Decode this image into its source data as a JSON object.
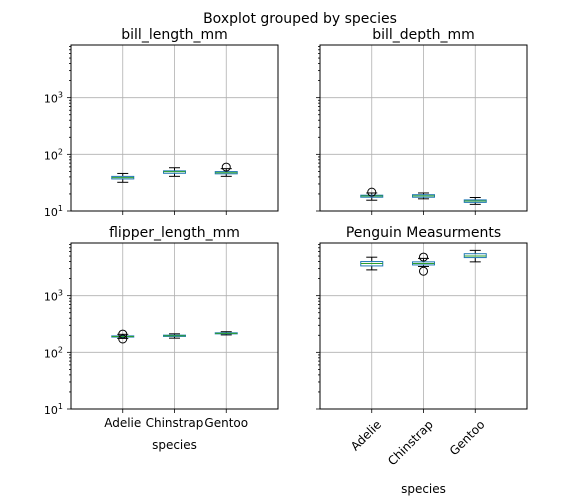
{
  "figure_title": "Boxplot grouped by species",
  "chart_data": [
    {
      "type": "boxplot",
      "title": "bill_length_mm",
      "categories": [
        "Adelie",
        "Chinstrap",
        "Gentoo"
      ],
      "xlabel": "",
      "ylabel": "",
      "yscale": "log",
      "ylim": [
        10,
        8500
      ],
      "grid": true,
      "boxes": [
        {
          "whislo": 32.1,
          "q1": 36.8,
          "med": 38.8,
          "q3": 40.8,
          "whishi": 46.0,
          "fliers": []
        },
        {
          "whislo": 40.9,
          "q1": 46.3,
          "med": 49.6,
          "q3": 51.1,
          "whishi": 58.0,
          "fliers": []
        },
        {
          "whislo": 40.9,
          "q1": 45.3,
          "med": 47.3,
          "q3": 49.6,
          "whishi": 55.9,
          "fliers": [
            59.6
          ]
        }
      ]
    },
    {
      "type": "boxplot",
      "title": "bill_depth_mm",
      "categories": [
        "Adelie",
        "Chinstrap",
        "Gentoo"
      ],
      "xlabel": "",
      "ylabel": "",
      "yscale": "log",
      "ylim": [
        10,
        8500
      ],
      "grid": true,
      "boxes": [
        {
          "whislo": 15.5,
          "q1": 17.5,
          "med": 18.4,
          "q3": 19.0,
          "whishi": 20.8,
          "fliers": [
            21.5
          ]
        },
        {
          "whislo": 16.4,
          "q1": 17.5,
          "med": 18.45,
          "q3": 19.4,
          "whishi": 20.8,
          "fliers": []
        },
        {
          "whislo": 13.1,
          "q1": 14.2,
          "med": 15.0,
          "q3": 15.7,
          "whishi": 17.3,
          "fliers": []
        }
      ]
    },
    {
      "type": "boxplot",
      "title": "flipper_length_mm",
      "categories": [
        "Adelie",
        "Chinstrap",
        "Gentoo"
      ],
      "xlabel": "species",
      "ylabel": "",
      "yscale": "log",
      "ylim": [
        10,
        8500
      ],
      "grid": true,
      "boxes": [
        {
          "whislo": 176,
          "q1": 186,
          "med": 190,
          "q3": 195,
          "whishi": 208,
          "fliers": [
            172,
            210
          ]
        },
        {
          "whislo": 178,
          "q1": 191,
          "med": 196,
          "q3": 201,
          "whishi": 212,
          "fliers": []
        },
        {
          "whislo": 203,
          "q1": 212,
          "med": 216,
          "q3": 221,
          "whishi": 231,
          "fliers": []
        }
      ]
    },
    {
      "type": "boxplot",
      "title": "Penguin Measurments",
      "categories": [
        "Adelie",
        "Chinstrap",
        "Gentoo"
      ],
      "xlabel": "species",
      "ylabel": "",
      "yscale": "log",
      "ylim": [
        10,
        8500
      ],
      "grid": true,
      "xtick_rotation": 45,
      "boxes": [
        {
          "whislo": 2850,
          "q1": 3350,
          "med": 3700,
          "q3": 4000,
          "whishi": 4775,
          "fliers": []
        },
        {
          "whislo": 3275,
          "q1": 3487,
          "med": 3700,
          "q3": 3950,
          "whishi": 4550,
          "fliers": [
            2700,
            4800
          ]
        },
        {
          "whislo": 3950,
          "q1": 4700,
          "med": 5000,
          "q3": 5500,
          "whishi": 6300,
          "fliers": []
        }
      ]
    }
  ],
  "colors": {
    "box": "#1f77b4",
    "median": "#2ca02c",
    "whisker": "#000000",
    "grid": "#b0b0b0",
    "axes": "#000000"
  },
  "ytick_labels": [
    {
      "value": 10,
      "exp": "1"
    },
    {
      "value": 100,
      "exp": "2"
    },
    {
      "value": 1000,
      "exp": "3"
    }
  ]
}
